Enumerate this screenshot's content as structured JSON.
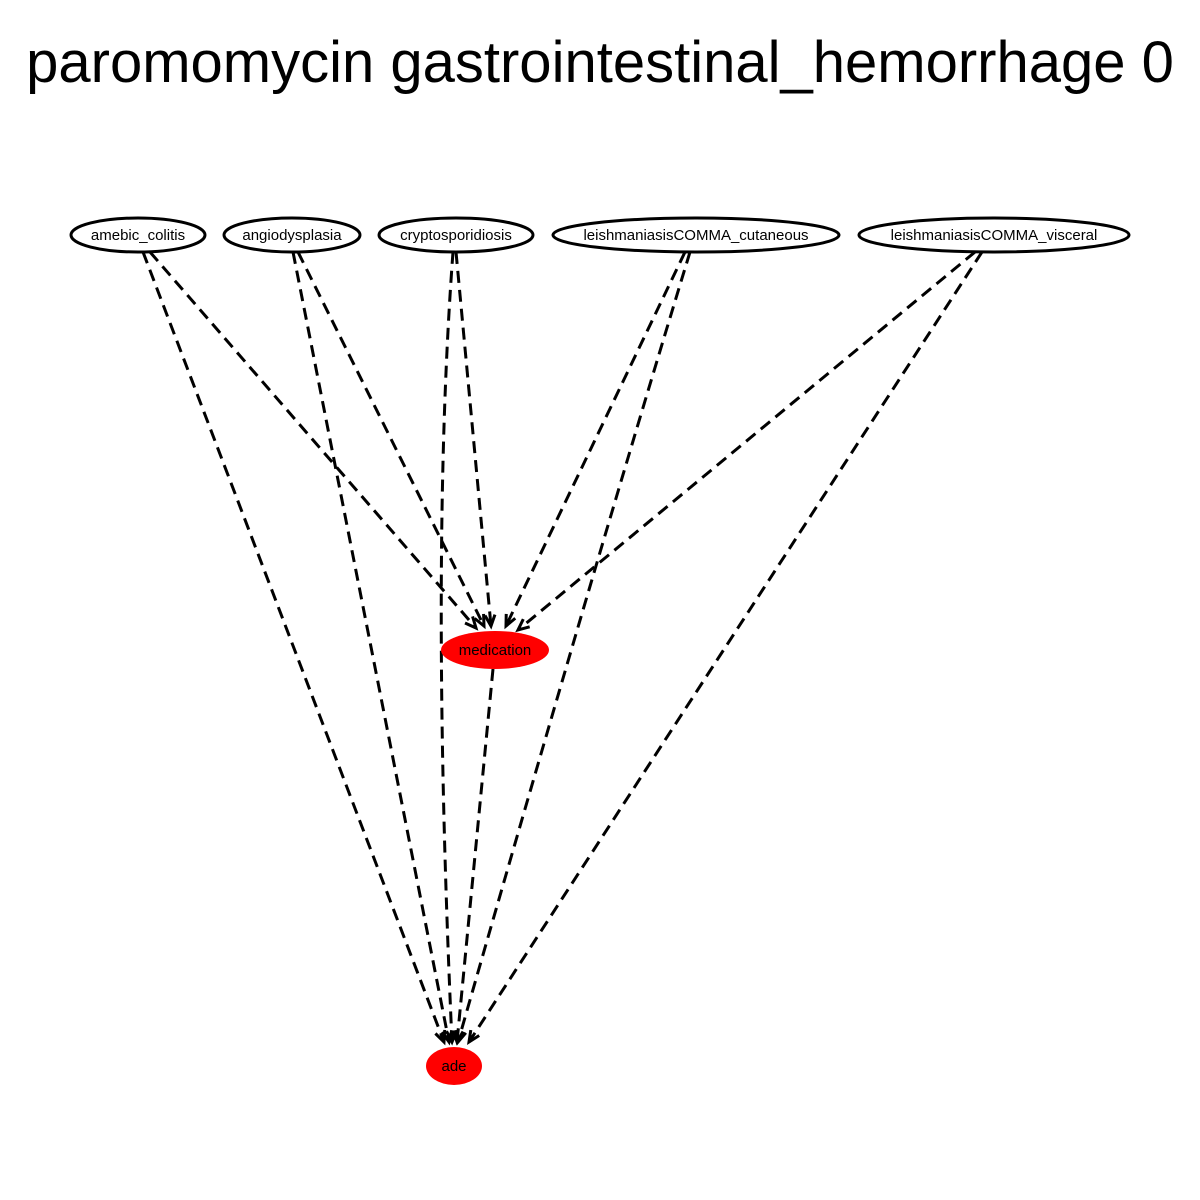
{
  "title": "paromomycin gastrointestinal_hemorrhage 0",
  "nodes": [
    {
      "id": "amebic_colitis",
      "label": "amebic_colitis",
      "fill": "#ffffff"
    },
    {
      "id": "angiodysplasia",
      "label": "angiodysplasia",
      "fill": "#ffffff"
    },
    {
      "id": "cryptosporidiosis",
      "label": "cryptosporidiosis",
      "fill": "#ffffff"
    },
    {
      "id": "leish_cut",
      "label": "leishmaniasisCOMMA_cutaneous",
      "fill": "#ffffff"
    },
    {
      "id": "leish_visc",
      "label": "leishmaniasisCOMMA_visceral",
      "fill": "#ffffff"
    },
    {
      "id": "medication",
      "label": "medication",
      "fill": "#ff0000"
    },
    {
      "id": "ade",
      "label": "ade",
      "fill": "#ff0000"
    }
  ],
  "edges": [
    {
      "from": "amebic_colitis",
      "to": "medication",
      "style": "dashed"
    },
    {
      "from": "amebic_colitis",
      "to": "ade",
      "style": "dashed"
    },
    {
      "from": "angiodysplasia",
      "to": "medication",
      "style": "dashed"
    },
    {
      "from": "angiodysplasia",
      "to": "ade",
      "style": "dashed"
    },
    {
      "from": "cryptosporidiosis",
      "to": "medication",
      "style": "dashed"
    },
    {
      "from": "cryptosporidiosis",
      "to": "ade",
      "style": "dashed"
    },
    {
      "from": "leish_cut",
      "to": "medication",
      "style": "dashed"
    },
    {
      "from": "leish_cut",
      "to": "ade",
      "style": "dashed"
    },
    {
      "from": "leish_visc",
      "to": "medication",
      "style": "dashed"
    },
    {
      "from": "leish_visc",
      "to": "ade",
      "style": "dashed"
    },
    {
      "from": "medication",
      "to": "ade",
      "style": "dashed"
    }
  ]
}
